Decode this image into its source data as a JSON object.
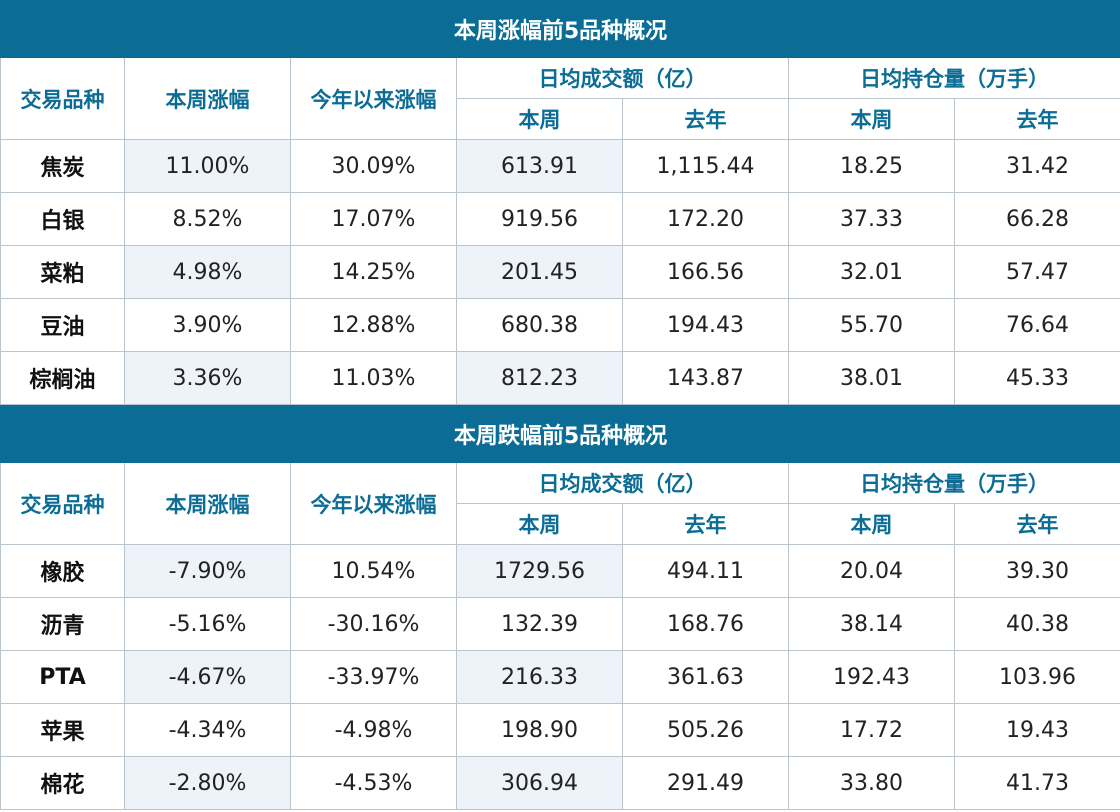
{
  "chart_data": [
    {
      "type": "table",
      "title": "本周涨幅前5品种概况",
      "header": {
        "variety": "交易品种",
        "weekly_change": "本周涨幅",
        "ytd_change": "今年以来涨幅",
        "turnover_group": "日均成交额（亿）",
        "oi_group": "日均持仓量（万手）",
        "this_week": "本周",
        "last_year": "去年"
      },
      "rows": [
        [
          "焦炭",
          "11.00%",
          "30.09%",
          "613.91",
          "1,115.44",
          "18.25",
          "31.42"
        ],
        [
          "白银",
          "8.52%",
          "17.07%",
          "919.56",
          "172.20",
          "37.33",
          "66.28"
        ],
        [
          "菜粕",
          "4.98%",
          "14.25%",
          "201.45",
          "166.56",
          "32.01",
          "57.47"
        ],
        [
          "豆油",
          "3.90%",
          "12.88%",
          "680.38",
          "194.43",
          "55.70",
          "76.64"
        ],
        [
          "棕榈油",
          "3.36%",
          "11.03%",
          "812.23",
          "143.87",
          "38.01",
          "45.33"
        ]
      ]
    },
    {
      "type": "table",
      "title": "本周跌幅前5品种概况",
      "header": {
        "variety": "交易品种",
        "weekly_change": "本周涨幅",
        "ytd_change": "今年以来涨幅",
        "turnover_group": "日均成交额（亿）",
        "oi_group": "日均持仓量（万手）",
        "this_week": "本周",
        "last_year": "去年"
      },
      "rows": [
        [
          "橡胶",
          "-7.90%",
          "10.54%",
          "1729.56",
          "494.11",
          "20.04",
          "39.30"
        ],
        [
          "沥青",
          "-5.16%",
          "-30.16%",
          "132.39",
          "168.76",
          "38.14",
          "40.38"
        ],
        [
          "PTA",
          "-4.67%",
          "-33.97%",
          "216.33",
          "361.63",
          "192.43",
          "103.96"
        ],
        [
          "苹果",
          "-4.34%",
          "-4.98%",
          "198.90",
          "505.26",
          "17.72",
          "19.43"
        ],
        [
          "棉花",
          "-2.80%",
          "-4.53%",
          "306.94",
          "291.49",
          "33.80",
          "41.73"
        ]
      ]
    }
  ],
  "colors": {
    "header_bg": "#0b6d96",
    "header_text": "#0b6d96",
    "row_shade": "#eef2f9",
    "border": "#b9c4cc"
  }
}
